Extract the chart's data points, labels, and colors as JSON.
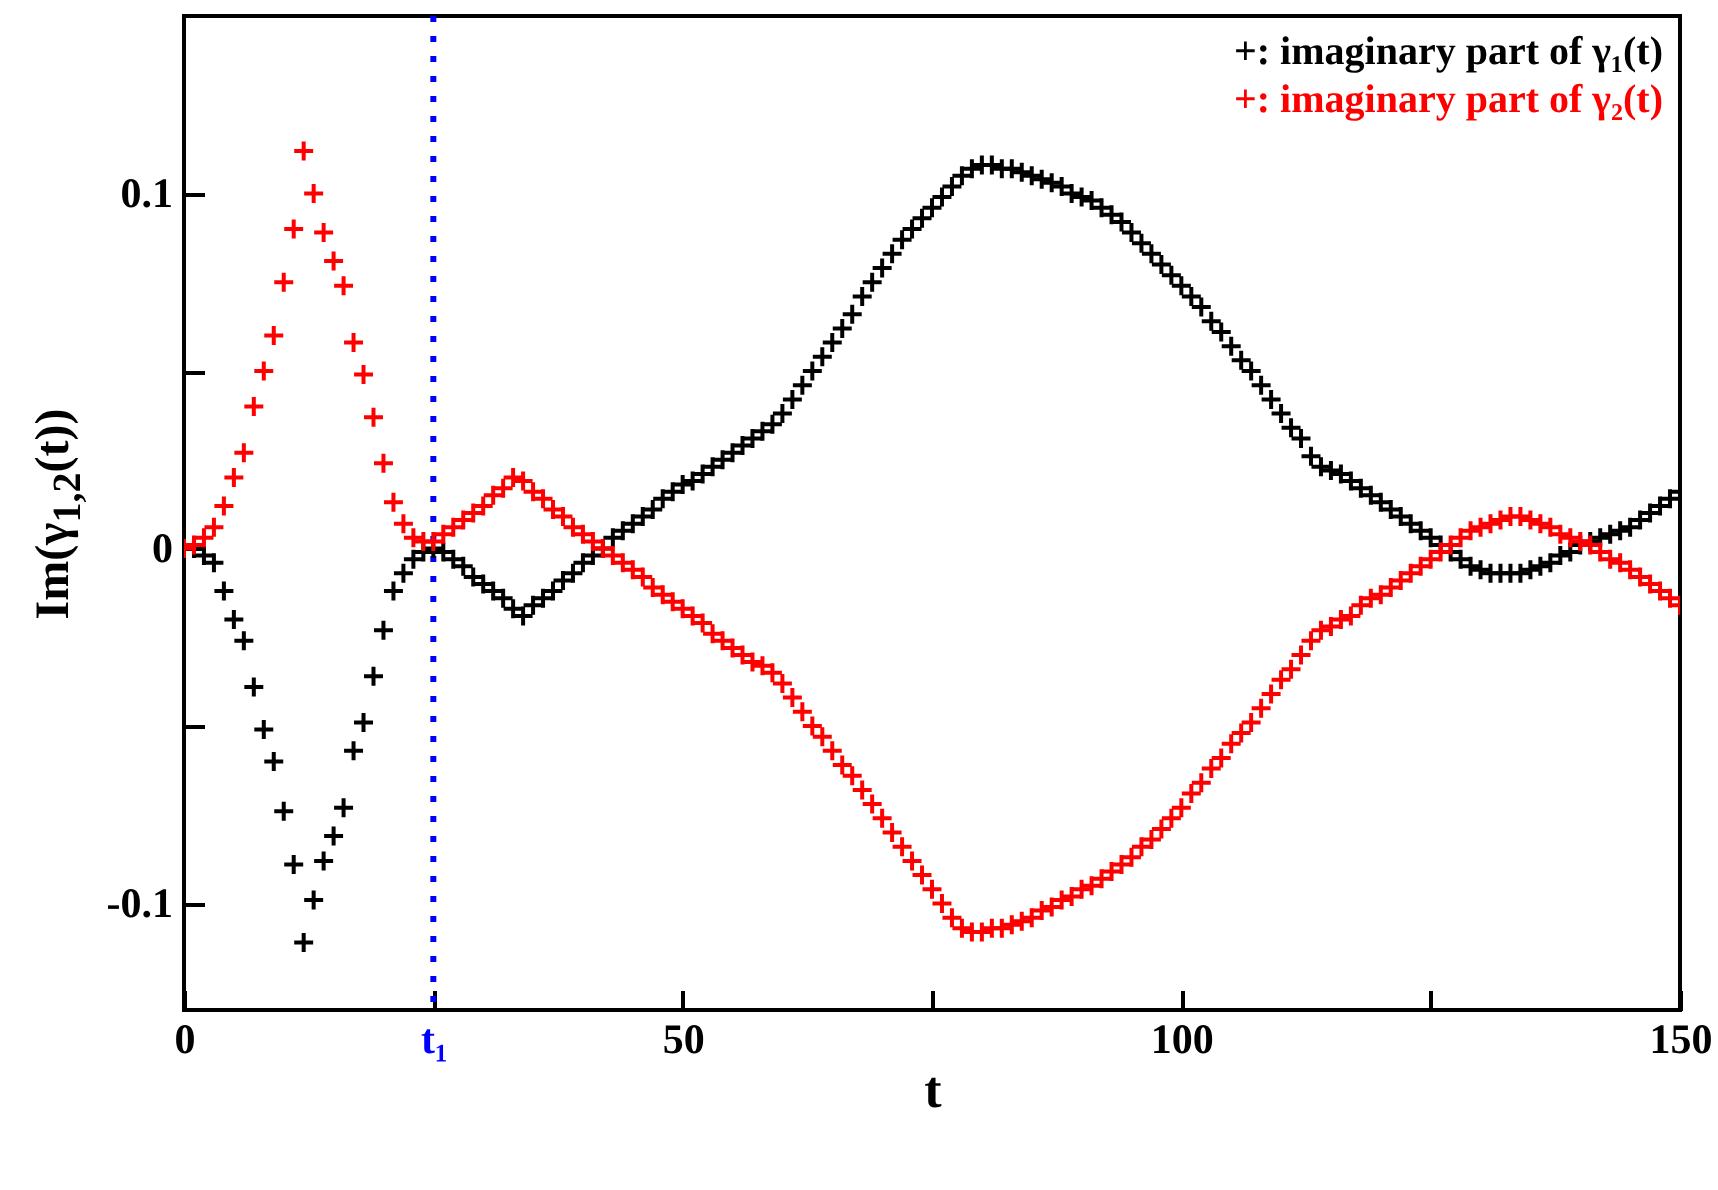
{
  "chart_data": {
    "type": "scatter",
    "xlabel": "t",
    "ylabel": "Im(γ$_{1,2}$(t))",
    "x": [
      0,
      1,
      2,
      3,
      4,
      5,
      6,
      7,
      8,
      9,
      10,
      11,
      12,
      13,
      14,
      15,
      16,
      17,
      18,
      19,
      20,
      21,
      22,
      23,
      24,
      25,
      26,
      27,
      28,
      29,
      30,
      31,
      32,
      33,
      34,
      35,
      36,
      37,
      38,
      39,
      40,
      41,
      42,
      43,
      44,
      45,
      46,
      47,
      48,
      49,
      50,
      51,
      52,
      53,
      54,
      55,
      56,
      57,
      58,
      59,
      60,
      61,
      62,
      63,
      64,
      65,
      66,
      67,
      68,
      69,
      70,
      71,
      72,
      73,
      74,
      75,
      76,
      77,
      78,
      79,
      80,
      81,
      82,
      83,
      84,
      85,
      86,
      87,
      88,
      89,
      90,
      91,
      92,
      93,
      94,
      95,
      96,
      97,
      98,
      99,
      100,
      101,
      102,
      103,
      104,
      105,
      106,
      107,
      108,
      109,
      110,
      111,
      112,
      113,
      114,
      115,
      116,
      117,
      118,
      119,
      120,
      121,
      122,
      123,
      124,
      125,
      126,
      127,
      128,
      129,
      130,
      131,
      132,
      133,
      134,
      135,
      136,
      137,
      138,
      139,
      140,
      141,
      142,
      143,
      144,
      145,
      146,
      147,
      148,
      149,
      150
    ],
    "series": [
      {
        "name": "+: imaginary part of γ₁(t)",
        "color": "#000000",
        "values": [
          null,
          0,
          -0.002,
          -0.004,
          -0.012,
          -0.02,
          -0.026,
          -0.039,
          -0.051,
          -0.06,
          -0.074,
          -0.089,
          -0.111,
          -0.099,
          -0.088,
          -0.081,
          -0.073,
          -0.057,
          -0.049,
          -0.036,
          -0.023,
          -0.012,
          -0.007,
          -0.003,
          -0.001,
          0.0,
          -0.001,
          -0.003,
          -0.005,
          -0.008,
          -0.01,
          -0.012,
          -0.014,
          -0.017,
          -0.019,
          -0.016,
          -0.014,
          -0.012,
          -0.009,
          -0.007,
          -0.004,
          -0.002,
          0.0,
          0.003,
          0.005,
          0.007,
          0.009,
          0.011,
          0.014,
          0.016,
          0.018,
          0.019,
          0.021,
          0.023,
          0.025,
          0.027,
          0.029,
          0.031,
          0.033,
          0.035,
          0.038,
          0.042,
          0.046,
          0.05,
          0.054,
          0.058,
          0.062,
          0.066,
          0.071,
          0.075,
          0.079,
          0.083,
          0.087,
          0.09,
          0.093,
          0.096,
          0.099,
          0.102,
          0.105,
          0.107,
          0.108,
          0.108,
          0.107,
          0.107,
          0.106,
          0.105,
          0.104,
          0.103,
          0.102,
          0.1,
          0.099,
          0.098,
          0.096,
          0.094,
          0.092,
          0.089,
          0.086,
          0.083,
          0.08,
          0.077,
          0.074,
          0.071,
          0.068,
          0.064,
          0.061,
          0.057,
          0.053,
          0.05,
          0.046,
          0.042,
          0.038,
          0.034,
          0.031,
          0.026,
          0.023,
          0.022,
          0.021,
          0.019,
          0.017,
          0.015,
          0.013,
          0.011,
          0.009,
          0.007,
          0.005,
          0.003,
          0.001,
          -0.001,
          -0.003,
          -0.005,
          -0.006,
          -0.007,
          -0.007,
          -0.007,
          -0.007,
          -0.006,
          -0.005,
          -0.004,
          -0.002,
          -0.001,
          0.001,
          0.002,
          0.003,
          0.004,
          0.005,
          0.006,
          0.008,
          0.01,
          0.012,
          0.014,
          0.016
        ]
      },
      {
        "name": "+: imaginary part of γ₂(t)",
        "color": "#ff0000",
        "values": [
          0,
          0.001,
          0.003,
          0.006,
          0.012,
          0.02,
          0.027,
          0.04,
          0.05,
          0.06,
          0.075,
          0.09,
          0.112,
          0.1,
          0.089,
          0.081,
          0.074,
          0.058,
          0.049,
          0.037,
          0.024,
          0.013,
          0.007,
          0.003,
          0.002,
          0.002,
          0.004,
          0.006,
          0.008,
          0.01,
          0.012,
          0.015,
          0.017,
          0.02,
          0.019,
          0.016,
          0.014,
          0.011,
          0.009,
          0.006,
          0.004,
          0.002,
          0.0,
          -0.002,
          -0.004,
          -0.006,
          -0.008,
          -0.011,
          -0.013,
          -0.015,
          -0.017,
          -0.019,
          -0.021,
          -0.024,
          -0.026,
          -0.028,
          -0.03,
          -0.032,
          -0.033,
          -0.035,
          -0.038,
          -0.042,
          -0.046,
          -0.05,
          -0.053,
          -0.057,
          -0.061,
          -0.064,
          -0.068,
          -0.072,
          -0.076,
          -0.08,
          -0.084,
          -0.088,
          -0.092,
          -0.096,
          -0.1,
          -0.104,
          -0.107,
          -0.108,
          -0.108,
          -0.107,
          -0.107,
          -0.106,
          -0.105,
          -0.104,
          -0.102,
          -0.101,
          -0.099,
          -0.098,
          -0.096,
          -0.095,
          -0.093,
          -0.091,
          -0.089,
          -0.087,
          -0.084,
          -0.082,
          -0.079,
          -0.076,
          -0.073,
          -0.069,
          -0.066,
          -0.062,
          -0.059,
          -0.055,
          -0.052,
          -0.049,
          -0.045,
          -0.041,
          -0.037,
          -0.034,
          -0.03,
          -0.026,
          -0.023,
          -0.022,
          -0.02,
          -0.019,
          -0.016,
          -0.014,
          -0.013,
          -0.011,
          -0.009,
          -0.007,
          -0.005,
          -0.003,
          -0.001,
          0.001,
          0.003,
          0.005,
          0.006,
          0.007,
          0.008,
          0.009,
          0.009,
          0.008,
          0.007,
          0.006,
          0.004,
          0.003,
          0.002,
          0.001,
          -0.001,
          -0.003,
          -0.004,
          -0.006,
          -0.008,
          -0.01,
          -0.012,
          -0.014,
          -0.016
        ]
      }
    ],
    "xlim": [
      0,
      150
    ],
    "xticks": [
      0,
      {
        "value": 25,
        "label": "t₁"
      },
      50,
      {
        "value": 75,
        "label": null
      },
      100,
      {
        "value": 125,
        "label": null
      },
      150
    ],
    "ylim": [
      -0.13,
      0.15
    ],
    "yticks": [
      -0.1,
      {
        "value": -0.05,
        "label": null
      },
      0,
      {
        "value": 0.05,
        "label": null
      },
      0.1
    ],
    "ref_lines": [
      {
        "axis": "x",
        "value": 25,
        "color": "#0000ff",
        "line_style": "dotted"
      }
    ],
    "marker": "cross",
    "legend": "top right"
  }
}
